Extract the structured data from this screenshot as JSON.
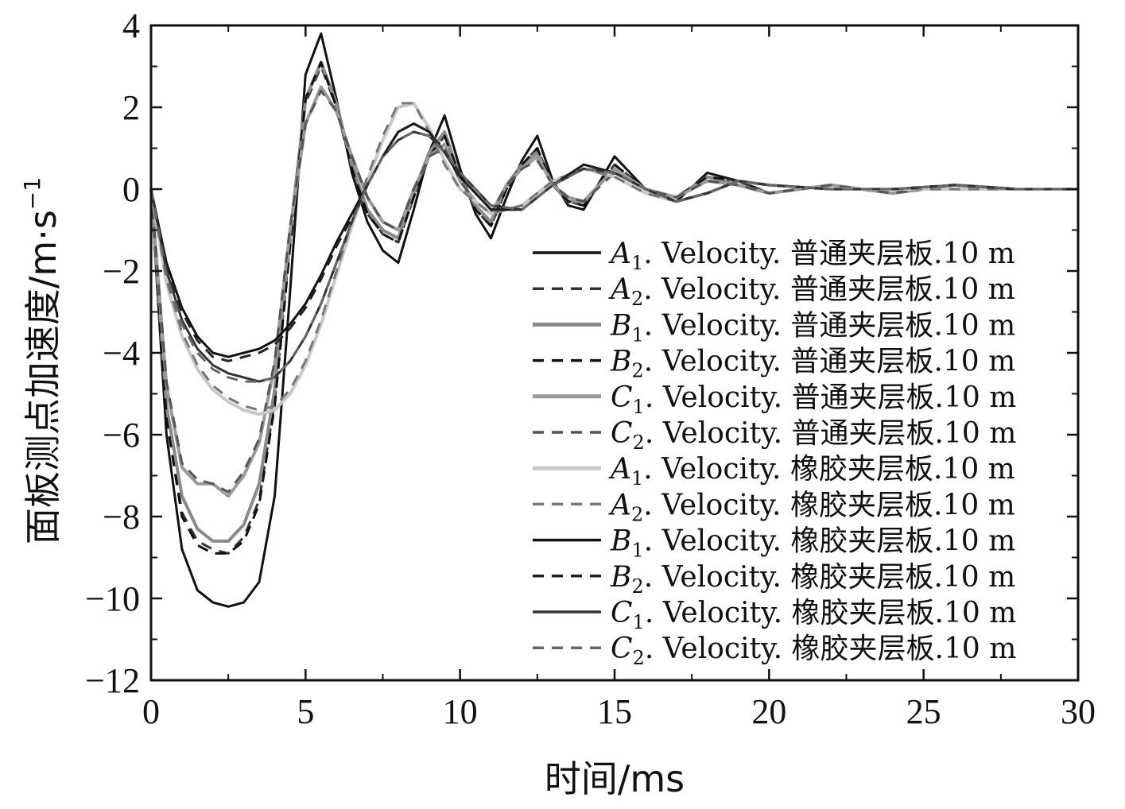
{
  "chart_data": {
    "type": "line",
    "title": "",
    "xlabel": "时间/ms",
    "ylabel": "面板测点加速度/m·s",
    "ylabel_sup": "−1",
    "xlim": [
      0,
      30
    ],
    "ylim": [
      -12,
      4
    ],
    "x_ticks": [
      0,
      5,
      10,
      15,
      20,
      25,
      30
    ],
    "y_ticks": [
      -12,
      -10,
      -8,
      -6,
      -4,
      -2,
      0,
      2,
      4
    ],
    "x_tick_labels": [
      "0",
      "5",
      "10",
      "15",
      "20",
      "25",
      "30"
    ],
    "y_tick_labels": [
      "−12",
      "−10",
      "−8",
      "−6",
      "−4",
      "−2",
      "0",
      "2",
      "4"
    ],
    "grid": false,
    "legend_position": "right",
    "legend_suffix": ". Velocity. ",
    "legend_unit": ".10 m",
    "series": [
      {
        "letter": "A",
        "sub": "1",
        "plate": "普通夹层板",
        "style": "solid",
        "color": "#111111",
        "x": [
          0,
          0.5,
          1,
          1.5,
          2,
          2.5,
          3,
          3.5,
          4,
          4.5,
          5,
          5.5,
          6,
          6.5,
          7,
          7.5,
          8,
          8.5,
          9,
          9.5,
          10,
          10.5,
          11,
          11.5,
          12,
          12.5,
          13,
          13.5,
          14,
          15,
          16,
          17,
          18,
          19,
          20,
          22,
          24,
          26,
          28,
          30
        ],
        "y": [
          0,
          -6.0,
          -8.8,
          -9.8,
          -10.1,
          -10.2,
          -10.1,
          -9.6,
          -7.5,
          -2.5,
          2.8,
          3.8,
          2.2,
          0.4,
          -0.8,
          -1.5,
          -1.8,
          -0.5,
          0.9,
          1.8,
          0.5,
          -0.6,
          -1.2,
          -0.2,
          0.7,
          1.3,
          0.2,
          -0.4,
          -0.5,
          0.8,
          0.0,
          -0.3,
          0.4,
          0.2,
          -0.1,
          0.1,
          -0.1,
          0.1,
          0.0,
          0.0
        ]
      },
      {
        "letter": "A",
        "sub": "2",
        "plate": "普通夹层板",
        "style": "dashed",
        "color": "#333333",
        "x": [
          0,
          0.5,
          1,
          1.5,
          2,
          2.5,
          3,
          3.5,
          4,
          4.5,
          5,
          5.5,
          6,
          6.5,
          7,
          7.5,
          8,
          8.5,
          9,
          9.5,
          10,
          10.5,
          11,
          11.5,
          12,
          12.5,
          13,
          13.5,
          14,
          15,
          16,
          17,
          18,
          19,
          20,
          22,
          24,
          26,
          28,
          30
        ],
        "y": [
          0,
          -5.5,
          -7.9,
          -8.6,
          -8.8,
          -8.9,
          -8.5,
          -7.6,
          -5.2,
          -1.3,
          2.1,
          3.0,
          2.0,
          0.5,
          -0.6,
          -1.1,
          -1.3,
          -0.2,
          0.8,
          1.3,
          0.3,
          -0.5,
          -0.9,
          0.0,
          0.6,
          1.0,
          0.1,
          -0.3,
          -0.4,
          0.6,
          0.0,
          -0.2,
          0.3,
          0.2,
          -0.1,
          0.1,
          -0.1,
          0.1,
          0.0,
          0.0
        ]
      },
      {
        "letter": "B",
        "sub": "1",
        "plate": "普通夹层板",
        "style": "solid",
        "color": "#8a8a8a",
        "x": [
          0,
          0.5,
          1,
          1.5,
          2,
          2.5,
          3,
          3.5,
          4,
          4.5,
          5,
          5.5,
          6,
          6.5,
          7,
          7.5,
          8,
          8.5,
          9,
          9.5,
          10,
          10.5,
          11,
          11.5,
          12,
          12.5,
          13,
          13.5,
          14,
          15,
          16,
          17,
          18,
          19,
          20,
          22,
          24,
          26,
          28,
          30
        ],
        "y": [
          0,
          -5.3,
          -7.5,
          -8.3,
          -8.6,
          -8.6,
          -8.2,
          -7.2,
          -4.9,
          -1.1,
          2.2,
          3.1,
          2.1,
          0.6,
          -0.5,
          -1.0,
          -1.2,
          -0.1,
          0.9,
          1.4,
          0.3,
          -0.4,
          -0.8,
          0.1,
          0.6,
          0.9,
          0.1,
          -0.3,
          -0.3,
          0.5,
          0.0,
          -0.2,
          0.3,
          0.1,
          -0.1,
          0.1,
          -0.1,
          0.1,
          0.0,
          0.0
        ]
      },
      {
        "letter": "B",
        "sub": "2",
        "plate": "普通夹层板",
        "style": "dashed",
        "color": "#111111",
        "x": [
          0,
          0.5,
          1,
          1.5,
          2,
          2.5,
          3,
          3.5,
          4,
          4.5,
          5,
          5.5,
          6,
          6.5,
          7,
          7.5,
          8,
          8.5,
          9,
          9.5,
          10,
          10.5,
          11,
          11.5,
          12,
          12.5,
          13,
          13.5,
          14,
          15,
          16,
          17,
          18,
          19,
          20,
          22,
          24,
          26,
          28,
          30
        ],
        "y": [
          0,
          -5.6,
          -8.0,
          -8.7,
          -8.9,
          -8.9,
          -8.6,
          -7.7,
          -5.3,
          -1.4,
          2.2,
          3.1,
          2.0,
          0.5,
          -0.6,
          -1.1,
          -1.3,
          -0.2,
          0.8,
          1.3,
          0.3,
          -0.5,
          -0.9,
          0.0,
          0.6,
          1.0,
          0.1,
          -0.3,
          -0.4,
          0.6,
          0.0,
          -0.2,
          0.3,
          0.2,
          -0.1,
          0.1,
          -0.1,
          0.1,
          0.0,
          0.0
        ]
      },
      {
        "letter": "C",
        "sub": "1",
        "plate": "普通夹层板",
        "style": "solid",
        "color": "#9a9a9a",
        "x": [
          0,
          0.5,
          1,
          1.5,
          2,
          2.5,
          3,
          3.5,
          4,
          4.5,
          5,
          5.5,
          6,
          6.5,
          7,
          7.5,
          8,
          8.5,
          9,
          9.5,
          10,
          10.5,
          11,
          11.5,
          12,
          12.5,
          13,
          13.5,
          14,
          15,
          16,
          17,
          18,
          19,
          20,
          22,
          24,
          26,
          28,
          30
        ],
        "y": [
          0,
          -4.8,
          -6.8,
          -7.2,
          -7.2,
          -7.5,
          -7.0,
          -6.2,
          -4.3,
          -1.0,
          1.6,
          2.5,
          1.9,
          0.8,
          -0.2,
          -0.8,
          -1.0,
          0.0,
          0.8,
          1.1,
          0.2,
          -0.3,
          -0.6,
          0.1,
          0.5,
          0.8,
          0.1,
          -0.2,
          -0.3,
          0.5,
          0.0,
          -0.2,
          0.2,
          0.1,
          -0.1,
          0.1,
          -0.1,
          0.1,
          0.0,
          0.0
        ]
      },
      {
        "letter": "C",
        "sub": "2",
        "plate": "普通夹层板",
        "style": "dashed",
        "color": "#555555",
        "x": [
          0,
          0.5,
          1,
          1.5,
          2,
          2.5,
          3,
          3.5,
          4,
          4.5,
          5,
          5.5,
          6,
          6.5,
          7,
          7.5,
          8,
          8.5,
          9,
          9.5,
          10,
          10.5,
          11,
          11.5,
          12,
          12.5,
          13,
          13.5,
          14,
          15,
          16,
          17,
          18,
          19,
          20,
          22,
          24,
          26,
          28,
          30
        ],
        "y": [
          0,
          -4.7,
          -6.7,
          -7.1,
          -7.2,
          -7.4,
          -6.9,
          -6.1,
          -4.2,
          -0.9,
          1.6,
          2.4,
          1.9,
          0.8,
          -0.2,
          -0.8,
          -1.0,
          0.0,
          0.8,
          1.0,
          0.2,
          -0.3,
          -0.6,
          0.1,
          0.5,
          0.7,
          0.1,
          -0.2,
          -0.3,
          0.4,
          0.0,
          -0.2,
          0.2,
          0.1,
          -0.1,
          0.1,
          -0.1,
          0.1,
          0.0,
          0.0
        ]
      },
      {
        "letter": "A",
        "sub": "1",
        "plate": "橡胶夹层板",
        "style": "solid",
        "color": "#c8c8c8",
        "x": [
          0,
          0.5,
          1,
          1.5,
          2,
          2.5,
          3,
          3.5,
          4,
          4.5,
          5,
          5.5,
          6,
          6.5,
          7,
          7.5,
          8,
          8.5,
          9,
          9.5,
          10,
          11,
          12,
          13,
          14,
          15,
          16,
          17,
          18,
          19,
          20,
          22,
          24,
          26,
          28,
          30
        ],
        "y": [
          0,
          -2.3,
          -3.6,
          -4.4,
          -4.9,
          -5.2,
          -5.4,
          -5.5,
          -5.4,
          -5.0,
          -4.3,
          -3.3,
          -2.1,
          -0.9,
          0.2,
          1.2,
          2.0,
          2.1,
          1.5,
          0.7,
          0.0,
          -0.6,
          -0.4,
          0.2,
          0.5,
          0.3,
          -0.1,
          -0.3,
          -0.1,
          0.2,
          0.1,
          0.0,
          0.0,
          0.0,
          0.0,
          0.0
        ]
      },
      {
        "letter": "A",
        "sub": "2",
        "plate": "橡胶夹层板",
        "style": "dashed",
        "color": "#777777",
        "x": [
          0,
          0.5,
          1,
          1.5,
          2,
          2.5,
          3,
          3.5,
          4,
          4.5,
          5,
          5.5,
          6,
          6.5,
          7,
          7.5,
          8,
          8.5,
          9,
          9.5,
          10,
          11,
          12,
          13,
          14,
          15,
          16,
          17,
          18,
          19,
          20,
          22,
          24,
          26,
          28,
          30
        ],
        "y": [
          0,
          -2.2,
          -3.5,
          -4.3,
          -4.8,
          -5.1,
          -5.3,
          -5.4,
          -5.3,
          -4.9,
          -4.2,
          -3.2,
          -2.0,
          -0.8,
          0.3,
          1.3,
          2.1,
          2.1,
          1.4,
          0.6,
          0.0,
          -0.6,
          -0.4,
          0.2,
          0.5,
          0.3,
          -0.1,
          -0.3,
          -0.1,
          0.2,
          0.1,
          0.0,
          0.0,
          0.0,
          0.0,
          0.0
        ]
      },
      {
        "letter": "B",
        "sub": "1",
        "plate": "橡胶夹层板",
        "style": "solid",
        "color": "#111111",
        "x": [
          0,
          0.5,
          1,
          1.5,
          2,
          2.5,
          3,
          3.5,
          4,
          4.5,
          5,
          5.5,
          6,
          6.5,
          7,
          7.5,
          8,
          8.5,
          9,
          9.5,
          10,
          11,
          12,
          13,
          14,
          15,
          16,
          17,
          18,
          19,
          20,
          22,
          24,
          26,
          28,
          30
        ],
        "y": [
          0,
          -1.8,
          -2.9,
          -3.6,
          -4.0,
          -4.1,
          -4.0,
          -3.9,
          -3.7,
          -3.3,
          -2.8,
          -2.1,
          -1.3,
          -0.6,
          0.1,
          0.8,
          1.4,
          1.6,
          1.4,
          0.9,
          0.3,
          -0.5,
          -0.5,
          0.1,
          0.6,
          0.4,
          0.0,
          -0.3,
          -0.1,
          0.2,
          0.1,
          0.0,
          0.0,
          0.1,
          0.0,
          0.0
        ]
      },
      {
        "letter": "B",
        "sub": "2",
        "plate": "橡胶夹层板",
        "style": "dashed",
        "color": "#222222",
        "x": [
          0,
          0.5,
          1,
          1.5,
          2,
          2.5,
          3,
          3.5,
          4,
          4.5,
          5,
          5.5,
          6,
          6.5,
          7,
          7.5,
          8,
          8.5,
          9,
          9.5,
          10,
          11,
          12,
          13,
          14,
          15,
          16,
          17,
          18,
          19,
          20,
          22,
          24,
          26,
          28,
          30
        ],
        "y": [
          0,
          -1.9,
          -3.0,
          -3.7,
          -4.1,
          -4.2,
          -4.1,
          -4.0,
          -3.8,
          -3.4,
          -2.9,
          -2.2,
          -1.4,
          -0.7,
          0.1,
          0.8,
          1.4,
          1.6,
          1.4,
          0.9,
          0.3,
          -0.5,
          -0.5,
          0.1,
          0.6,
          0.4,
          0.0,
          -0.3,
          -0.1,
          0.2,
          0.1,
          0.0,
          0.0,
          0.1,
          0.0,
          0.0
        ]
      },
      {
        "letter": "C",
        "sub": "1",
        "plate": "橡胶夹层板",
        "style": "solid",
        "color": "#333333",
        "x": [
          0,
          0.5,
          1,
          1.5,
          2,
          2.5,
          3,
          3.5,
          4,
          4.5,
          5,
          5.5,
          6,
          6.5,
          7,
          7.5,
          8,
          8.5,
          9,
          9.5,
          10,
          11,
          12,
          13,
          14,
          15,
          16,
          17,
          18,
          19,
          20,
          22,
          24,
          26,
          28,
          30
        ],
        "y": [
          0,
          -2.0,
          -3.2,
          -3.9,
          -4.3,
          -4.5,
          -4.6,
          -4.7,
          -4.6,
          -4.2,
          -3.6,
          -2.8,
          -1.8,
          -0.8,
          0.1,
          0.8,
          1.2,
          1.4,
          1.3,
          0.9,
          0.4,
          -0.4,
          -0.5,
          0.1,
          0.5,
          0.4,
          0.0,
          -0.3,
          -0.1,
          0.2,
          0.1,
          0.0,
          0.0,
          0.1,
          0.0,
          0.0
        ]
      },
      {
        "letter": "C",
        "sub": "2",
        "plate": "橡胶夹层板",
        "style": "dashed",
        "color": "#666666",
        "x": [
          0,
          0.5,
          1,
          1.5,
          2,
          2.5,
          3,
          3.5,
          4,
          4.5,
          5,
          5.5,
          6,
          6.5,
          7,
          7.5,
          8,
          8.5,
          9,
          9.5,
          10,
          11,
          12,
          13,
          14,
          15,
          16,
          17,
          18,
          19,
          20,
          22,
          24,
          26,
          28,
          30
        ],
        "y": [
          0,
          -2.1,
          -3.3,
          -4.0,
          -4.4,
          -4.6,
          -4.7,
          -4.7,
          -4.6,
          -4.2,
          -3.6,
          -2.8,
          -1.8,
          -0.8,
          0.1,
          0.8,
          1.2,
          1.4,
          1.3,
          0.9,
          0.4,
          -0.4,
          -0.5,
          0.1,
          0.5,
          0.4,
          0.0,
          -0.3,
          -0.1,
          0.2,
          0.1,
          0.0,
          0.0,
          0.1,
          0.0,
          0.0
        ]
      }
    ]
  }
}
